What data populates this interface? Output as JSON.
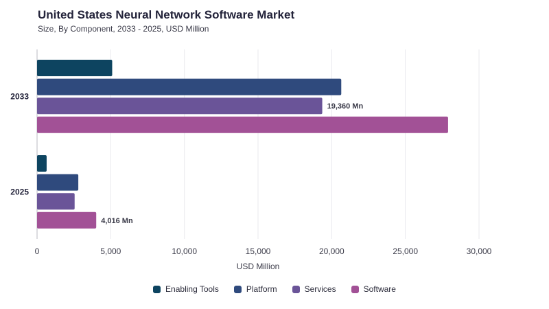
{
  "chart_data": {
    "type": "bar",
    "orientation": "horizontal",
    "title": "United States Neural Network Software Market",
    "subtitle": "Size, By Component, 2033 - 2025, USD Million",
    "categories": [
      "2033",
      "2025"
    ],
    "xlabel": "USD Million",
    "ylabel": "",
    "xlim": [
      0,
      30000
    ],
    "xticks": [
      0,
      5000,
      10000,
      15000,
      20000,
      25000,
      30000
    ],
    "xtick_labels": [
      "0",
      "5,000",
      "10,000",
      "15,000",
      "20,000",
      "25,000",
      "30,000"
    ],
    "grid": true,
    "legend_position": "bottom",
    "series": [
      {
        "name": "Enabling Tools",
        "color": "#0d4460",
        "values": [
          5100,
          650
        ]
      },
      {
        "name": "Platform",
        "color": "#2f4a7d",
        "values": [
          20650,
          2800
        ]
      },
      {
        "name": "Services",
        "color": "#6a5498",
        "values": [
          19360,
          2550
        ]
      },
      {
        "name": "Software",
        "color": "#a25196",
        "values": [
          27900,
          4016
        ]
      }
    ],
    "annotations": [
      {
        "category": "2033",
        "series": "Services",
        "text": "19,360 Mn"
      },
      {
        "category": "2025",
        "series": "Software",
        "text": "4,016 Mn"
      }
    ]
  }
}
